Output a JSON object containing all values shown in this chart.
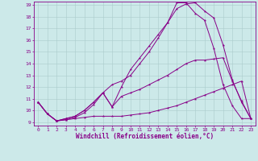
{
  "xlabel": "Windchill (Refroidissement éolien,°C)",
  "background_color": "#cce9e9",
  "line_color": "#880088",
  "grid_color": "#aacccc",
  "xlim": [
    -0.5,
    23.5
  ],
  "ylim": [
    8.7,
    19.3
  ],
  "yticks": [
    9,
    10,
    11,
    12,
    13,
    14,
    15,
    16,
    17,
    18,
    19
  ],
  "xticks": [
    0,
    1,
    2,
    3,
    4,
    5,
    6,
    7,
    8,
    9,
    10,
    11,
    12,
    13,
    14,
    15,
    16,
    17,
    18,
    19,
    20,
    21,
    22,
    23
  ],
  "series": [
    [
      10.7,
      9.7,
      9.1,
      9.2,
      9.3,
      9.4,
      9.5,
      9.5,
      9.5,
      9.5,
      9.6,
      9.7,
      9.8,
      10.0,
      10.2,
      10.4,
      10.7,
      11.0,
      11.3,
      11.6,
      11.9,
      12.2,
      12.5,
      9.3
    ],
    [
      10.7,
      9.7,
      9.1,
      9.2,
      9.4,
      9.8,
      10.5,
      11.5,
      10.3,
      11.2,
      11.5,
      11.8,
      12.2,
      12.6,
      13.0,
      13.5,
      14.0,
      14.3,
      14.3,
      14.4,
      14.5,
      12.5,
      10.8,
      9.3
    ],
    [
      10.7,
      9.7,
      9.1,
      9.3,
      9.5,
      10.0,
      10.7,
      11.5,
      12.2,
      12.5,
      13.0,
      14.0,
      15.0,
      16.2,
      17.5,
      18.7,
      19.1,
      19.2,
      18.5,
      17.9,
      15.6,
      12.6,
      10.7,
      9.3
    ],
    [
      10.7,
      9.7,
      9.1,
      9.3,
      9.5,
      10.0,
      10.7,
      11.5,
      10.3,
      12.0,
      13.5,
      14.5,
      15.5,
      16.5,
      17.5,
      19.2,
      19.2,
      18.3,
      17.7,
      15.3,
      12.2,
      10.4,
      9.3,
      9.3
    ]
  ]
}
